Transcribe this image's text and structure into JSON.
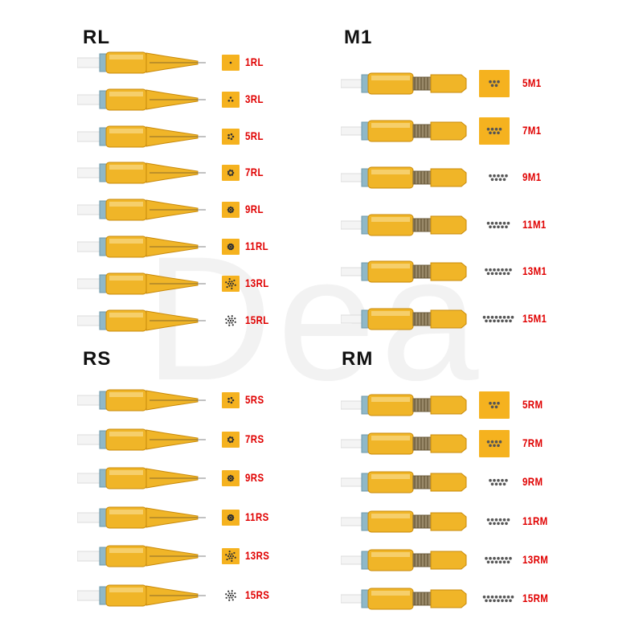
{
  "sections": [
    {
      "key": "rl",
      "title": "RL",
      "kind": "round",
      "rows": [
        {
          "label": "1RL",
          "n": 1,
          "swatch": true
        },
        {
          "label": "3RL",
          "n": 3,
          "swatch": true
        },
        {
          "label": "5RL",
          "n": 5,
          "swatch": true
        },
        {
          "label": "7RL",
          "n": 7,
          "swatch": true
        },
        {
          "label": "9RL",
          "n": 9,
          "swatch": true
        },
        {
          "label": "11RL",
          "n": 11,
          "swatch": true
        },
        {
          "label": "13RL",
          "n": 13,
          "swatch": true
        },
        {
          "label": "15RL",
          "n": 15,
          "swatch": false
        }
      ]
    },
    {
      "key": "m1",
      "title": "M1",
      "kind": "mag",
      "rows": [
        {
          "label": "5M1",
          "n": 5,
          "swatch": true
        },
        {
          "label": "7M1",
          "n": 7,
          "swatch": true
        },
        {
          "label": "9M1",
          "n": 9,
          "swatch": false
        },
        {
          "label": "11M1",
          "n": 11,
          "swatch": false
        },
        {
          "label": "13M1",
          "n": 13,
          "swatch": false
        },
        {
          "label": "15M1",
          "n": 15,
          "swatch": false
        }
      ]
    },
    {
      "key": "rs",
      "title": "RS",
      "kind": "round",
      "rows": [
        {
          "label": "5RS",
          "n": 5,
          "swatch": true
        },
        {
          "label": "7RS",
          "n": 7,
          "swatch": true
        },
        {
          "label": "9RS",
          "n": 9,
          "swatch": true
        },
        {
          "label": "11RS",
          "n": 11,
          "swatch": true
        },
        {
          "label": "13RS",
          "n": 13,
          "swatch": true
        },
        {
          "label": "15RS",
          "n": 15,
          "swatch": false
        }
      ]
    },
    {
      "key": "rm",
      "title": "RM",
      "kind": "mag",
      "rows": [
        {
          "label": "5RM",
          "n": 5,
          "swatch": true
        },
        {
          "label": "7RM",
          "n": 7,
          "swatch": true
        },
        {
          "label": "9RM",
          "n": 9,
          "swatch": false
        },
        {
          "label": "11RM",
          "n": 11,
          "swatch": false
        },
        {
          "label": "13RM",
          "n": 13,
          "swatch": false
        },
        {
          "label": "15RM",
          "n": 15,
          "swatch": false
        }
      ]
    }
  ],
  "colors": {
    "label": "#e00000",
    "swatch": "#f5b21f",
    "cartridge": "#f0b528",
    "cartridge_dark": "#c98a0a",
    "dot": "#333333",
    "mag_dot": "#555555"
  }
}
